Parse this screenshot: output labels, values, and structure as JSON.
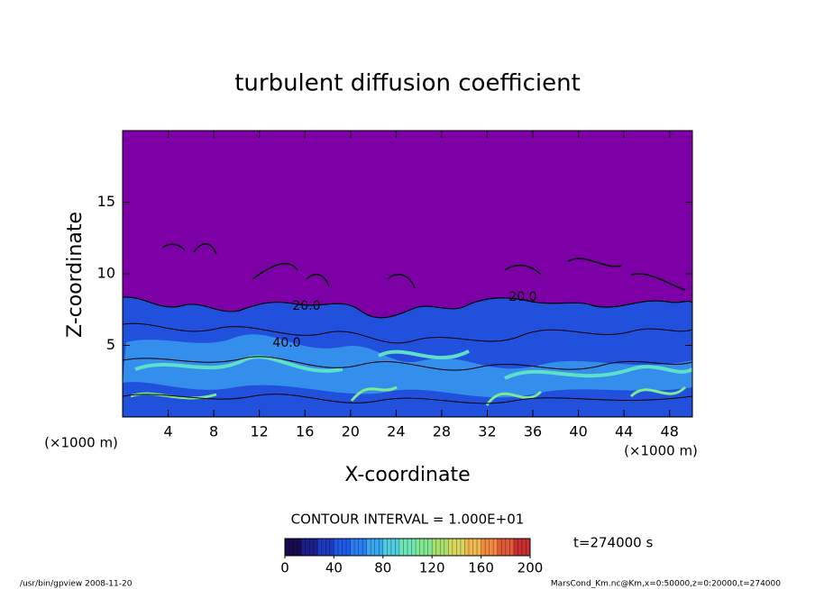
{
  "chart_data": {
    "type": "contour",
    "title": "turbulent diffusion coefficient",
    "xlabel": "X-coordinate",
    "ylabel": "Z-coordinate",
    "xunit": "(×1000 m)",
    "yunit": "(×1000 m)",
    "xlim": [
      0,
      50
    ],
    "ylim": [
      0,
      20
    ],
    "xticks": [
      4,
      8,
      12,
      16,
      20,
      24,
      28,
      32,
      36,
      40,
      44,
      48
    ],
    "yticks": [
      5,
      10,
      15
    ],
    "contour_interval": "CONTOUR INTERVAL = 1.000E+01",
    "contour_labels": [
      "20.0",
      "20.0",
      "40.0"
    ],
    "time_label": "t=274000 s",
    "colorbar": {
      "lim": [
        0,
        200
      ],
      "ticks": [
        0,
        40,
        80,
        120,
        160,
        200
      ],
      "colors": [
        "#1a0a50",
        "#1c1f8a",
        "#1d3ac0",
        "#1f5ae6",
        "#2a7ef2",
        "#3aa6f0",
        "#52cce0",
        "#6ee6b8",
        "#7fe890",
        "#a8e070",
        "#d8d860",
        "#f0b850",
        "#f08a40",
        "#e05a38",
        "#c83030"
      ]
    },
    "footer_left": "/usr/bin/gpview   2008-11-20",
    "footer_right": "MarsCond_Km.nc@Km,x=0:50000,z=0:20000,t=274000"
  }
}
